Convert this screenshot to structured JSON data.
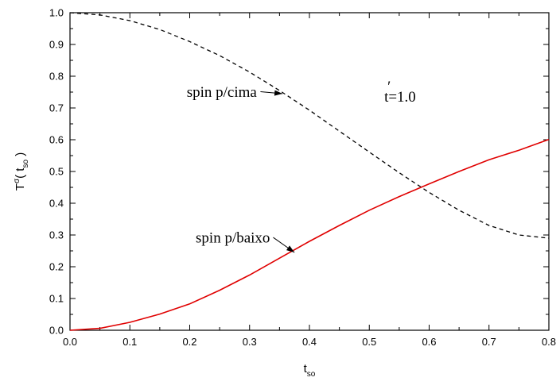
{
  "chart_data": {
    "type": "line",
    "xlim": [
      0.0,
      0.8
    ],
    "ylim": [
      0.0,
      1.0
    ],
    "x_ticks": [
      "0.0",
      "0.1",
      "0.2",
      "0.3",
      "0.4",
      "0.5",
      "0.6",
      "0.7",
      "0.8"
    ],
    "y_ticks": [
      "0.0",
      "0.1",
      "0.2",
      "0.3",
      "0.4",
      "0.5",
      "0.6",
      "0.7",
      "0.8",
      "0.9",
      "1.0"
    ],
    "xlabel": {
      "main": "t",
      "sub": "so"
    },
    "ylabel": {
      "main": "T",
      "sup": "σ",
      "open": "( t",
      "sub": "so",
      "close": " )"
    },
    "grid": false,
    "series": [
      {
        "style": "dashed",
        "color": "#000000",
        "x": [
          0.0,
          0.05,
          0.1,
          0.15,
          0.2,
          0.25,
          0.3,
          0.35,
          0.4,
          0.45,
          0.5,
          0.55,
          0.6,
          0.65,
          0.7,
          0.75,
          0.8
        ],
        "y": [
          1.0,
          0.993,
          0.975,
          0.947,
          0.909,
          0.865,
          0.813,
          0.755,
          0.693,
          0.627,
          0.561,
          0.496,
          0.434,
          0.378,
          0.33,
          0.3,
          0.29
        ]
      },
      {
        "style": "solid",
        "color": "#e00000",
        "x": [
          0.0,
          0.05,
          0.1,
          0.15,
          0.2,
          0.25,
          0.3,
          0.35,
          0.4,
          0.45,
          0.5,
          0.55,
          0.6,
          0.65,
          0.7,
          0.75,
          0.8
        ],
        "y": [
          0.0,
          0.006,
          0.025,
          0.051,
          0.083,
          0.126,
          0.174,
          0.227,
          0.28,
          0.33,
          0.378,
          0.421,
          0.461,
          0.5,
          0.537,
          0.567,
          0.601
        ]
      }
    ],
    "annotations": [
      {
        "text": "spin p/cima",
        "at": [
          0.195,
          0.735
        ],
        "arrow_to": [
          0.355,
          0.745
        ]
      },
      {
        "text": "spin p/baixo",
        "at": [
          0.21,
          0.276
        ],
        "arrow_to": [
          0.375,
          0.245
        ]
      },
      {
        "text": "t=1.0",
        "prime": "′",
        "at": [
          0.525,
          0.72
        ]
      }
    ]
  }
}
